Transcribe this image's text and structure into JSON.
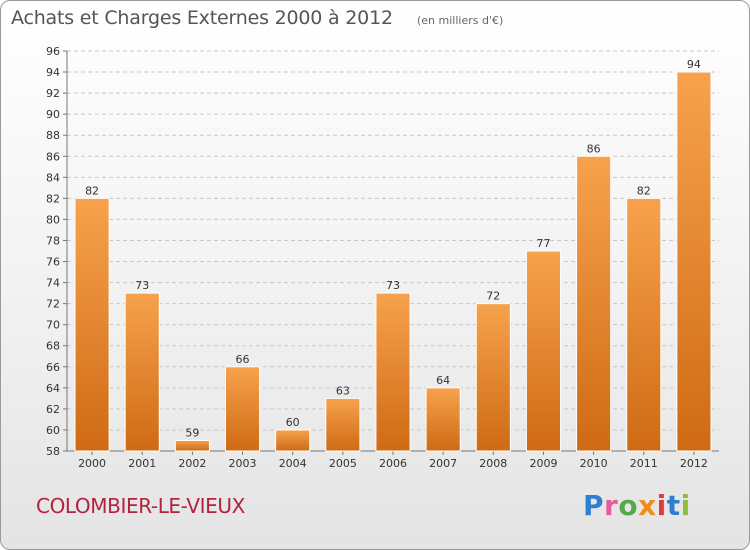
{
  "header": {
    "title": "Achats et Charges Externes 2000 à 2012",
    "subtitle": "(en milliers d'€)"
  },
  "footer": {
    "commune": "COLOMBIER-LE-VIEUX",
    "logo_letters": [
      "P",
      "r",
      "o",
      "x",
      "i",
      "t",
      "i"
    ]
  },
  "colors": {
    "bar_top": "#f7a24d",
    "bar_bottom": "#cf6a14",
    "commune_text": "#b5223f"
  },
  "chart_data": {
    "type": "bar",
    "title": "Achats et Charges Externes 2000 à 2012",
    "subtitle": "(en milliers d'€)",
    "xlabel": "",
    "ylabel": "",
    "categories": [
      "2000",
      "2001",
      "2002",
      "2003",
      "2004",
      "2005",
      "2006",
      "2007",
      "2008",
      "2009",
      "2010",
      "2011",
      "2012"
    ],
    "values": [
      82,
      73,
      59,
      66,
      60,
      63,
      73,
      64,
      72,
      77,
      86,
      82,
      94
    ],
    "ylim": [
      58,
      96
    ],
    "yticks": [
      58,
      60,
      62,
      64,
      66,
      68,
      70,
      72,
      74,
      76,
      78,
      80,
      82,
      84,
      86,
      88,
      90,
      92,
      94,
      96
    ],
    "grid": "horizontal dashed",
    "legend": "none",
    "data_labels": true
  }
}
